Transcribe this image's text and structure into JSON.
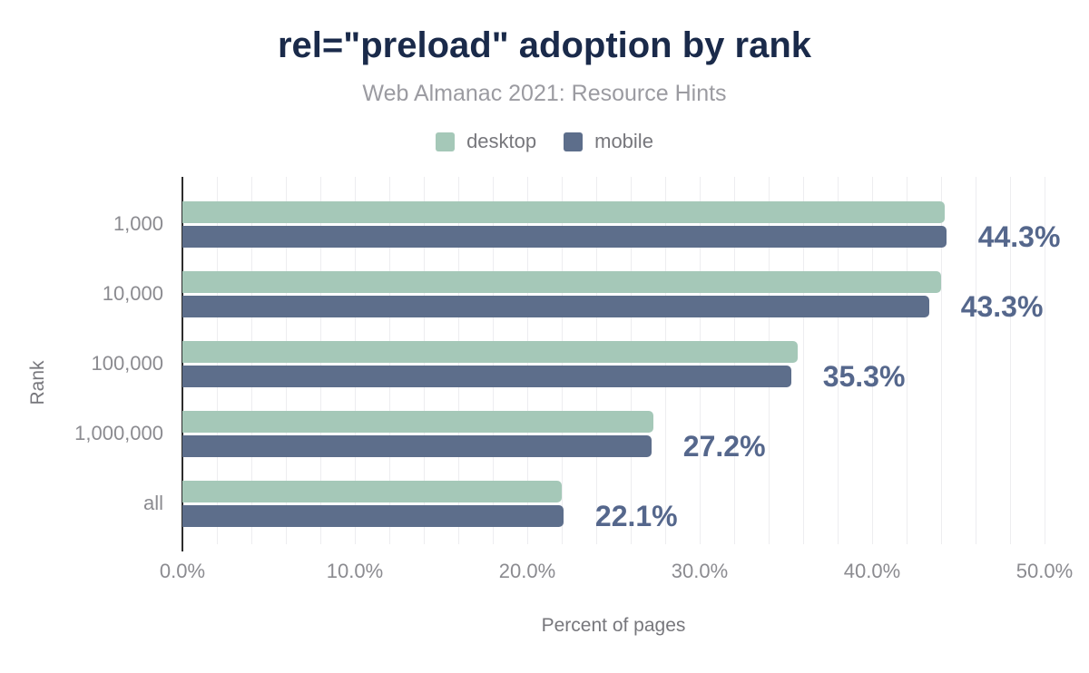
{
  "chart_data": {
    "type": "bar",
    "orientation": "horizontal",
    "title": "rel=\"preload\" adoption by rank",
    "subtitle": "Web Almanac 2021: Resource Hints",
    "categories": [
      "1,000",
      "10,000",
      "100,000",
      "1,000,000",
      "all"
    ],
    "series": [
      {
        "name": "desktop",
        "color": "#a5c8b8",
        "values": [
          44.2,
          44.0,
          35.7,
          27.3,
          22.0
        ]
      },
      {
        "name": "mobile",
        "color": "#5d6e8b",
        "values": [
          44.3,
          43.3,
          35.3,
          27.2,
          22.1
        ]
      }
    ],
    "value_labels": [
      "44.3%",
      "43.3%",
      "35.3%",
      "27.2%",
      "22.1%"
    ],
    "value_labels_follow_series": "mobile",
    "xlabel": "Percent of pages",
    "ylabel": "Rank",
    "xlim": [
      0,
      50
    ],
    "x_ticks": [
      {
        "value": 0,
        "label": "0.0%"
      },
      {
        "value": 10,
        "label": "10.0%"
      },
      {
        "value": 20,
        "label": "20.0%"
      },
      {
        "value": 30,
        "label": "30.0%"
      },
      {
        "value": 40,
        "label": "40.0%"
      },
      {
        "value": 50,
        "label": "50.0%"
      }
    ],
    "gridline_step": 2,
    "grid": true,
    "legend_position": "top"
  },
  "colors": {
    "title": "#1a2a4a",
    "value_label": "#55678c",
    "axis_line": "#2d2d2d",
    "gridline": "#ededf0",
    "tick_text": "#8b8b90",
    "background": "#ffffff"
  }
}
